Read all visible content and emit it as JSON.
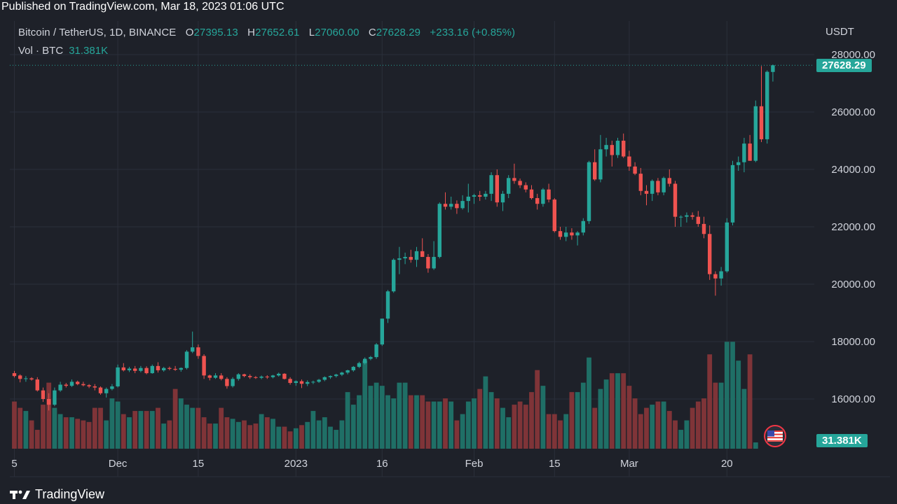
{
  "publish_bar": {
    "text": "Published on TradingView.com, Mar 18, 2023 01:06 UTC"
  },
  "legend": {
    "symbol": "Bitcoin / TetherUS, 1D, BINANCE",
    "o_label": "O",
    "o_value": "27395.13",
    "h_label": "H",
    "h_value": "27652.61",
    "l_label": "L",
    "l_value": "27060.00",
    "c_label": "C",
    "c_value": "27628.29",
    "change": "+233.16 (+0.85%)",
    "volume_label": "Vol · BTC",
    "volume_value": "31.381K"
  },
  "axis": {
    "currency": "USDT"
  },
  "price_tag": "27628.29",
  "volume_tag": "31.381K",
  "footer": {
    "brand": "TradingView"
  },
  "flag_icon": "us-flag-icon",
  "colors": {
    "up": "#26a69a",
    "down": "#ef5350",
    "up_volume": "#1f6f66",
    "down_volume": "#7f3438",
    "background": "#1e2129",
    "grid": "#2b2f3a",
    "text": "#d1d4dc"
  },
  "chart_data": {
    "type": "candlestick",
    "title": "Bitcoin / TetherUS, 1D, BINANCE",
    "y_axis": {
      "ticks": [
        "16000.00",
        "18000.00",
        "20000.00",
        "22000.00",
        "24000.00",
        "26000.00",
        "28000.00"
      ],
      "tick_values": [
        16000,
        18000,
        20000,
        22000,
        24000,
        26000,
        28000
      ],
      "range": [
        14000,
        28500
      ]
    },
    "x_axis": {
      "ticks": [
        "5",
        "Dec",
        "15",
        "2023",
        "16",
        "Feb",
        "15",
        "Mar",
        "20"
      ],
      "tick_day_index": [
        0,
        18,
        32,
        49,
        64,
        80,
        94,
        107,
        124
      ]
    },
    "last_price": 27628.29,
    "last_volume": "31.381K",
    "candles": [
      [
        16900,
        16980,
        16750,
        16800
      ],
      [
        16820,
        16860,
        16580,
        16700
      ],
      [
        16700,
        16800,
        16600,
        16720
      ],
      [
        16720,
        16760,
        16640,
        16680
      ],
      [
        16680,
        16760,
        16260,
        16300
      ],
      [
        16300,
        16400,
        15900,
        16000
      ],
      [
        16000,
        16200,
        15600,
        15800
      ],
      [
        15800,
        16400,
        15750,
        16300
      ],
      [
        16300,
        16600,
        16250,
        16500
      ],
      [
        16500,
        16560,
        16400,
        16460
      ],
      [
        16460,
        16680,
        16420,
        16600
      ],
      [
        16600,
        16640,
        16480,
        16520
      ],
      [
        16520,
        16600,
        16440,
        16480
      ],
      [
        16480,
        16520,
        16380,
        16440
      ],
      [
        16440,
        16520,
        16300,
        16400
      ],
      [
        16400,
        16440,
        16150,
        16200
      ],
      [
        16200,
        16400,
        16050,
        16350
      ],
      [
        16350,
        16520,
        16300,
        16440
      ],
      [
        16440,
        17200,
        16400,
        17100
      ],
      [
        17100,
        17250,
        16960,
        17000
      ],
      [
        17000,
        17120,
        16940,
        17060
      ],
      [
        17060,
        17150,
        16900,
        16980
      ],
      [
        16980,
        17150,
        16930,
        17080
      ],
      [
        17080,
        17140,
        16860,
        16900
      ],
      [
        16900,
        17200,
        16880,
        17150
      ],
      [
        17150,
        17280,
        16920,
        17000
      ],
      [
        17000,
        17120,
        16950,
        17080
      ],
      [
        17080,
        17130,
        17000,
        17050
      ],
      [
        17050,
        17150,
        16980,
        17020
      ],
      [
        17020,
        17100,
        16950,
        17080
      ],
      [
        17080,
        17700,
        17030,
        17650
      ],
      [
        17650,
        18350,
        17600,
        17800
      ],
      [
        17800,
        17900,
        17400,
        17500
      ],
      [
        17500,
        17560,
        16700,
        16820
      ],
      [
        16820,
        16850,
        16650,
        16740
      ],
      [
        16740,
        16900,
        16700,
        16820
      ],
      [
        16820,
        16900,
        16650,
        16700
      ],
      [
        16700,
        16760,
        16360,
        16450
      ],
      [
        16450,
        16760,
        16400,
        16700
      ],
      [
        16700,
        16900,
        16640,
        16860
      ],
      [
        16860,
        16880,
        16760,
        16800
      ],
      [
        16800,
        16860,
        16700,
        16760
      ],
      [
        16760,
        16800,
        16700,
        16740
      ],
      [
        16740,
        16820,
        16690,
        16780
      ],
      [
        16780,
        16830,
        16700,
        16760
      ],
      [
        16760,
        16840,
        16720,
        16820
      ],
      [
        16820,
        16920,
        16780,
        16880
      ],
      [
        16880,
        16900,
        16680,
        16700
      ],
      [
        16700,
        16760,
        16500,
        16560
      ],
      [
        16560,
        16650,
        16460,
        16620
      ],
      [
        16620,
        16680,
        16380,
        16530
      ],
      [
        16530,
        16650,
        16450,
        16590
      ],
      [
        16590,
        16640,
        16520,
        16600
      ],
      [
        16600,
        16700,
        16560,
        16670
      ],
      [
        16670,
        16790,
        16620,
        16760
      ],
      [
        16760,
        16820,
        16700,
        16800
      ],
      [
        16800,
        16880,
        16750,
        16850
      ],
      [
        16850,
        16950,
        16800,
        16920
      ],
      [
        16920,
        17020,
        16860,
        17000
      ],
      [
        17000,
        17150,
        16950,
        17120
      ],
      [
        17120,
        17300,
        17080,
        17250
      ],
      [
        17250,
        17450,
        17200,
        17400
      ],
      [
        17400,
        17500,
        17350,
        17460
      ],
      [
        17460,
        17950,
        17400,
        17900
      ],
      [
        17900,
        18800,
        17850,
        18800
      ],
      [
        18800,
        19800,
        18650,
        19750
      ],
      [
        19750,
        20900,
        19700,
        20850
      ],
      [
        20850,
        21300,
        20350,
        20900
      ],
      [
        20900,
        21100,
        20700,
        20950
      ],
      [
        20950,
        21200,
        20750,
        20850
      ],
      [
        20850,
        21300,
        20600,
        21150
      ],
      [
        21150,
        21600,
        20950,
        20950
      ],
      [
        20950,
        21050,
        20400,
        20550
      ],
      [
        20550,
        21500,
        20500,
        20950
      ],
      [
        20950,
        22850,
        20900,
        22800
      ],
      [
        22800,
        23200,
        22600,
        22700
      ],
      [
        22700,
        23050,
        22600,
        22800
      ],
      [
        22800,
        22920,
        22450,
        22650
      ],
      [
        22650,
        23100,
        22600,
        22900
      ],
      [
        22900,
        23500,
        22500,
        23050
      ],
      [
        23050,
        23150,
        22800,
        23100
      ],
      [
        23100,
        23250,
        22900,
        23050
      ],
      [
        23050,
        23250,
        22950,
        23150
      ],
      [
        23150,
        23900,
        22900,
        23800
      ],
      [
        23800,
        24000,
        22700,
        22850
      ],
      [
        22850,
        23250,
        22550,
        23150
      ],
      [
        23150,
        23800,
        23000,
        23700
      ],
      [
        23700,
        24200,
        23500,
        23600
      ],
      [
        23600,
        23680,
        23350,
        23450
      ],
      [
        23450,
        23550,
        23200,
        23300
      ],
      [
        23300,
        23450,
        22950,
        23000
      ],
      [
        23000,
        23150,
        22600,
        22800
      ],
      [
        22800,
        23350,
        22700,
        23300
      ],
      [
        23300,
        23500,
        22850,
        22950
      ],
      [
        22950,
        23000,
        21800,
        21850
      ],
      [
        21850,
        22000,
        21550,
        21650
      ],
      [
        21650,
        22000,
        21500,
        21800
      ],
      [
        21800,
        21950,
        21550,
        21700
      ],
      [
        21700,
        21850,
        21350,
        21800
      ],
      [
        21800,
        22300,
        21700,
        22200
      ],
      [
        22200,
        24300,
        22100,
        24250
      ],
      [
        24250,
        24700,
        23600,
        23650
      ],
      [
        23650,
        25200,
        23550,
        24700
      ],
      [
        24700,
        25100,
        24450,
        24850
      ],
      [
        24850,
        25000,
        24100,
        24500
      ],
      [
        24500,
        25100,
        24400,
        25000
      ],
      [
        25000,
        25250,
        24400,
        24450
      ],
      [
        24450,
        24650,
        23950,
        24100
      ],
      [
        24100,
        24250,
        23800,
        23850
      ],
      [
        23850,
        24050,
        23100,
        23250
      ],
      [
        23250,
        23450,
        22750,
        23150
      ],
      [
        23150,
        23650,
        22900,
        23600
      ],
      [
        23600,
        23700,
        23100,
        23200
      ],
      [
        23200,
        23750,
        23100,
        23700
      ],
      [
        23700,
        24000,
        23400,
        23500
      ],
      [
        23500,
        23600,
        22000,
        22350
      ],
      [
        22350,
        22400,
        22000,
        22350
      ],
      [
        22350,
        22500,
        22150,
        22400
      ],
      [
        22400,
        22500,
        22250,
        22350
      ],
      [
        22350,
        22550,
        22000,
        22100
      ],
      [
        22100,
        22350,
        21600,
        21750
      ],
      [
        21750,
        22050,
        20150,
        20350
      ],
      [
        20350,
        20450,
        19600,
        20200
      ],
      [
        20200,
        20600,
        19950,
        20450
      ],
      [
        20450,
        22300,
        20400,
        22150
      ],
      [
        22150,
        24300,
        22050,
        24150
      ],
      [
        24150,
        24450,
        23950,
        24250
      ],
      [
        24250,
        25100,
        23900,
        24900
      ],
      [
        24900,
        25200,
        24300,
        24300
      ],
      [
        24300,
        26400,
        24250,
        26200
      ],
      [
        26200,
        27600,
        24950,
        25050
      ],
      [
        25050,
        27450,
        24900,
        27400
      ],
      [
        27395.13,
        27652.61,
        27060,
        27628.29
      ]
    ],
    "volumes": [
      1.5,
      1.3,
      1.2,
      0.9,
      0.6,
      1.4,
      2.1,
      1.3,
      1.1,
      1.0,
      1.0,
      0.95,
      0.9,
      0.85,
      1.3,
      1.3,
      0.9,
      1.6,
      1.5,
      1.1,
      1.0,
      1.2,
      1.2,
      1.2,
      1.2,
      1.3,
      0.8,
      0.9,
      1.9,
      1.6,
      1.4,
      1.3,
      1.3,
      1.0,
      0.8,
      0.8,
      1.3,
      1.0,
      0.95,
      0.85,
      0.9,
      0.75,
      0.8,
      1.1,
      1.0,
      0.95,
      0.7,
      0.7,
      0.55,
      0.65,
      0.75,
      0.85,
      1.2,
      0.9,
      1.0,
      0.7,
      0.6,
      0.9,
      1.8,
      1.4,
      1.7,
      2.8,
      2.0,
      2.1,
      2.0,
      1.7,
      1.6,
      2.1,
      2.1,
      1.7,
      1.7,
      1.7,
      1.5,
      1.5,
      1.5,
      1.6,
      1.5,
      0.9,
      1.1,
      1.5,
      1.6,
      1.9,
      2.3,
      1.8,
      1.6,
      1.3,
      1.0,
      1.4,
      1.5,
      1.4,
      1.8,
      2.5,
      2.0,
      1.1,
      1.1,
      0.9,
      1.1,
      1.8,
      1.8,
      2.1,
      2.9,
      1.3,
      1.9,
      2.2,
      2.4,
      2.4,
      2.4,
      2.0,
      1.6,
      1.1,
      1.3,
      1.4,
      1.5,
      1.5,
      1.2,
      0.9,
      0.6,
      0.9,
      1.3,
      1.5,
      1.6,
      3.0,
      2.1,
      2.1,
      3.4,
      3.4,
      2.8,
      1.9,
      3.0,
      0.2
    ],
    "volume_max_m": 3.45
  }
}
